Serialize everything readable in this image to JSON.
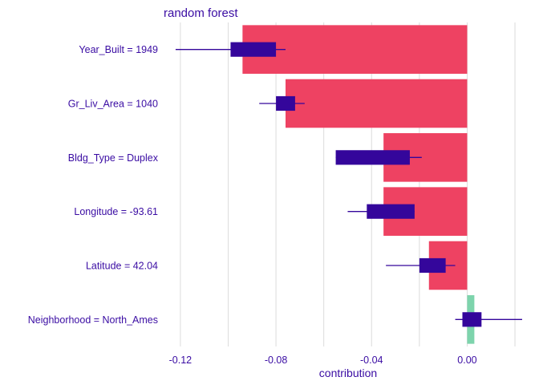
{
  "chart_data": {
    "type": "bar",
    "title": "random forest",
    "xlabel": "contribution",
    "xlim": [
      -0.125,
      0.022
    ],
    "xticks": [
      -0.12,
      -0.08,
      -0.04,
      0.0
    ],
    "xtick_labels": [
      "-0.12",
      "-0.08",
      "-0.04",
      "0.00"
    ],
    "grid": true,
    "categories": [
      "Year_Built = 1949",
      "Gr_Liv_Area = 1040",
      "Bldg_Type = Duplex",
      "Longitude = -93.61",
      "Latitude = 42.04",
      "Neighborhood = North_Ames"
    ],
    "values": [
      -0.094,
      -0.076,
      -0.035,
      -0.035,
      -0.016,
      0.003
    ],
    "boxplots": [
      {
        "whisker_low": -0.122,
        "q1": -0.099,
        "q3": -0.08,
        "whisker_high": -0.076
      },
      {
        "whisker_low": -0.087,
        "q1": -0.08,
        "q3": -0.072,
        "whisker_high": -0.068
      },
      {
        "whisker_low": -0.055,
        "q1": -0.055,
        "q3": -0.024,
        "whisker_high": -0.019
      },
      {
        "whisker_low": -0.05,
        "q1": -0.042,
        "q3": -0.022,
        "whisker_high": -0.022
      },
      {
        "whisker_low": -0.034,
        "q1": -0.02,
        "q3": -0.009,
        "whisker_high": -0.005
      },
      {
        "whisker_low": -0.005,
        "q1": -0.002,
        "q3": 0.006,
        "whisker_high": 0.023
      }
    ],
    "colors": {
      "negative": "#ee4262",
      "positive": "#7dd4ac",
      "box": "#34069b",
      "text": "#3a0ca3",
      "grid": "#dcdcdc"
    }
  }
}
